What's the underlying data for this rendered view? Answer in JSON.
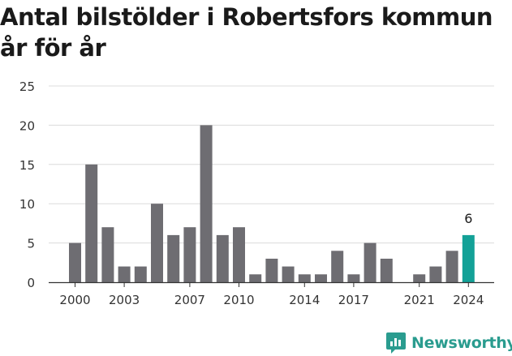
{
  "title": "Antal bilstölder i Robertsfors kommun år för år",
  "brand": {
    "name": "Newsworthy",
    "color": "#2a9c8f"
  },
  "colors": {
    "bar": "#6e6d72",
    "highlight": "#13a197",
    "grid": "#dcdcdc",
    "axis": "#333333"
  },
  "chart_data": {
    "type": "bar",
    "title": "Antal bilstölder i Robertsfors kommun år för år",
    "xlabel": "",
    "ylabel": "",
    "ylim": [
      0,
      25
    ],
    "yticks": [
      0,
      5,
      10,
      15,
      20,
      25
    ],
    "grid": true,
    "categories": [
      "2000",
      "2001",
      "2002",
      "2003",
      "2004",
      "2005",
      "2006",
      "2007",
      "2008",
      "2009",
      "2010",
      "2011",
      "2012",
      "2013",
      "2014",
      "2015",
      "2016",
      "2017",
      "2018",
      "2019",
      "2020",
      "2021",
      "2022",
      "2023",
      "2024"
    ],
    "values": [
      5,
      15,
      7,
      2,
      2,
      10,
      6,
      7,
      20,
      6,
      7,
      1,
      3,
      2,
      1,
      1,
      4,
      1,
      5,
      3,
      0,
      1,
      2,
      4,
      6
    ],
    "xtick_labels": [
      "2000",
      "2003",
      "2007",
      "2010",
      "2014",
      "2017",
      "2021",
      "2024"
    ],
    "highlight": {
      "category": "2024",
      "label": "6"
    }
  }
}
